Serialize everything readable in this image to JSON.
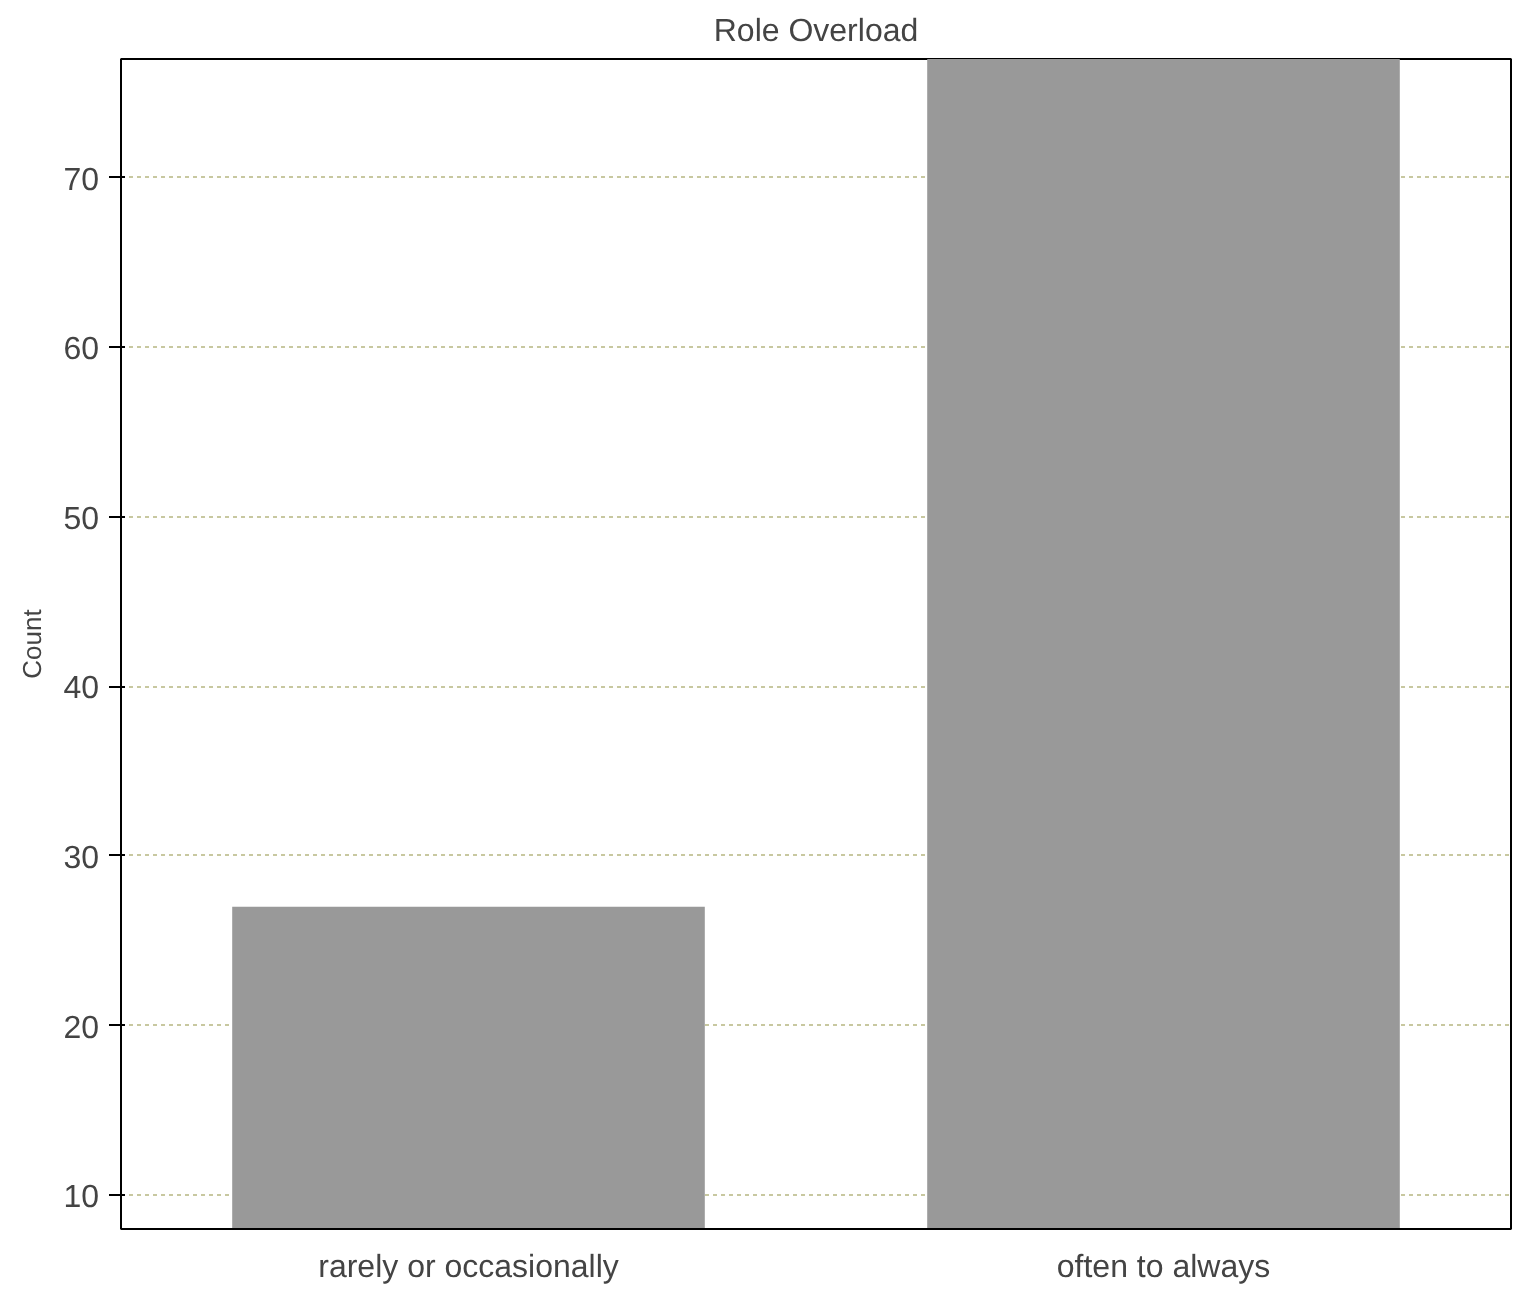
{
  "chart_data": {
    "type": "bar",
    "title": "Role Overload",
    "ylabel": "Count",
    "categories": [
      "rarely or occasionally",
      "often to always"
    ],
    "values": [
      27,
      77
    ],
    "color": "#999999",
    "ylim": [
      8,
      77
    ],
    "yticks": [
      10,
      20,
      30,
      40,
      50,
      60,
      70
    ],
    "grid": "y"
  }
}
